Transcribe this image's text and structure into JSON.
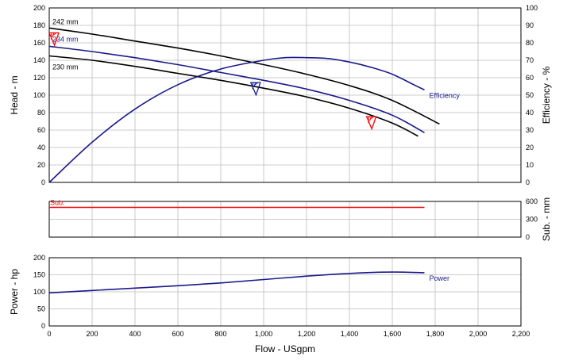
{
  "chart_data": [
    {
      "type": "line",
      "panel": "head-efficiency",
      "xlabel": "",
      "ylabel": "Head - m",
      "y2label": "Efficiency - %",
      "xlim": [
        0,
        2200
      ],
      "ylim": [
        0,
        200
      ],
      "y2lim": [
        0,
        100
      ],
      "grid": true,
      "y_ticks": [
        "0",
        "20",
        "40",
        "60",
        "80",
        "100",
        "120",
        "140",
        "160",
        "180",
        "200"
      ],
      "y2_ticks": [
        "0",
        "10",
        "20",
        "30",
        "40",
        "50",
        "60",
        "70",
        "80",
        "90",
        "100"
      ],
      "series": [
        {
          "name": "242 mm",
          "axis": "left",
          "color": "#000000",
          "x": [
            0,
            200,
            400,
            600,
            800,
            1000,
            1200,
            1400,
            1600,
            1820
          ],
          "y": [
            177,
            170,
            162,
            154,
            145,
            135,
            124,
            111,
            94,
            67
          ]
        },
        {
          "name": "234 mm",
          "axis": "left",
          "color": "#1a1a8c",
          "x": [
            0,
            200,
            400,
            600,
            800,
            1000,
            1200,
            1400,
            1600,
            1750
          ],
          "y": [
            156,
            150,
            143,
            135,
            126,
            117,
            107,
            94,
            77,
            57
          ]
        },
        {
          "name": "230 mm",
          "axis": "left",
          "color": "#000000",
          "x": [
            0,
            200,
            400,
            600,
            800,
            1000,
            1200,
            1400,
            1600,
            1720
          ],
          "y": [
            145,
            140,
            133,
            125,
            117,
            108,
            98,
            85,
            68,
            53
          ]
        },
        {
          "name": "Efficiency",
          "axis": "right",
          "color": "#1a1a8c",
          "x": [
            0,
            200,
            400,
            600,
            800,
            1000,
            1100,
            1200,
            1300,
            1400,
            1500,
            1600,
            1700,
            1750
          ],
          "y": [
            0,
            23,
            42,
            56,
            65,
            70,
            71.5,
            71.5,
            71,
            69,
            66,
            62,
            56,
            53
          ]
        }
      ],
      "markers": [
        {
          "color": "#ff0000",
          "x": 0,
          "y": 166
        },
        {
          "color": "#1a1a8c",
          "x": 940,
          "y": 109
        },
        {
          "color": "#ff0000",
          "x": 1480,
          "y": 70
        }
      ]
    },
    {
      "type": "line",
      "panel": "submergence",
      "xlabel": "",
      "ylabel": "",
      "y2label": "Sub. - mm",
      "xlim": [
        0,
        2200
      ],
      "y2lim": [
        0,
        600
      ],
      "grid": true,
      "y2_ticks": [
        "0",
        "300",
        "600"
      ],
      "series": [
        {
          "name": "Sub.",
          "axis": "right",
          "color": "#ff0000",
          "x": [
            0,
            1750
          ],
          "y": [
            500,
            500
          ]
        }
      ]
    },
    {
      "type": "line",
      "panel": "power",
      "xlabel": "Flow - USgpm",
      "ylabel": "Power - hp",
      "xlim": [
        0,
        2200
      ],
      "ylim": [
        0,
        200
      ],
      "grid": true,
      "x_ticks": [
        "0",
        "200",
        "400",
        "600",
        "800",
        "1,000",
        "1,200",
        "1,400",
        "1,600",
        "1,800",
        "2,000",
        "2,200"
      ],
      "y_ticks": [
        "0",
        "50",
        "100",
        "150",
        "200"
      ],
      "series": [
        {
          "name": "Power",
          "axis": "left",
          "color": "#1a1a8c",
          "x": [
            0,
            200,
            400,
            600,
            800,
            1000,
            1200,
            1400,
            1600,
            1750
          ],
          "y": [
            97,
            104,
            111,
            118,
            126,
            136,
            146,
            154,
            158,
            156
          ]
        }
      ]
    }
  ]
}
